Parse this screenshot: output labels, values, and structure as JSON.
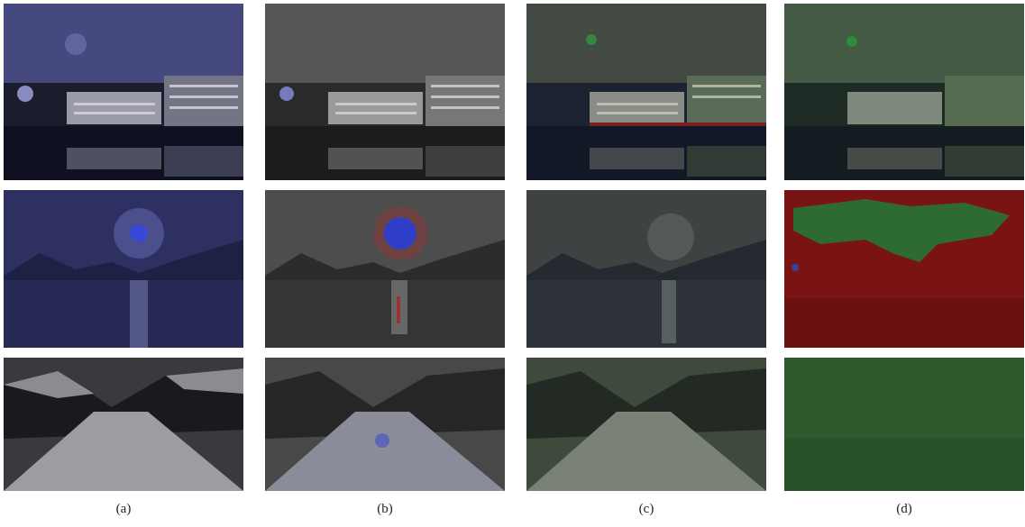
{
  "figure": {
    "column_labels": [
      "(a)",
      "(b)",
      "(c)",
      "(d)"
    ],
    "rows": [
      {
        "scene": "waterfront-buildings-night",
        "tints": [
          "blue",
          "gray",
          "green",
          "green"
        ]
      },
      {
        "scene": "moonlit-lake-mountains",
        "tints": [
          "blue",
          "gray-red-blue-highlight",
          "gray",
          "red-green"
        ]
      },
      {
        "scene": "snowy-mountain-valley",
        "tints": [
          "gray",
          "gray-blue",
          "green-gray",
          "green"
        ]
      }
    ],
    "colors": {
      "blue_tint": "#3a3f7a",
      "gray_tint": "#4a4a4a",
      "green_tint": "#3d4a3c",
      "red_region": "#7a1414",
      "green_region": "#2e6b34",
      "snow_green": "#2d5a2c"
    }
  }
}
